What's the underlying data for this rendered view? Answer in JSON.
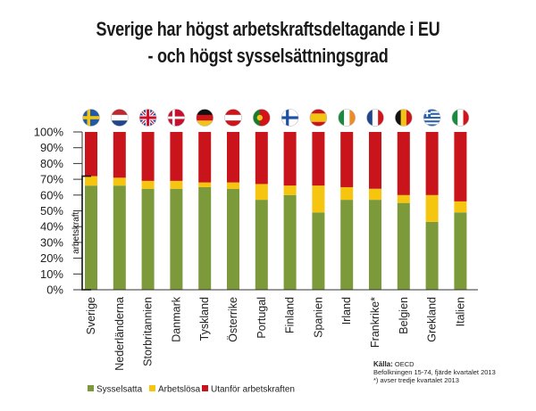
{
  "title": {
    "line1": "Sverige har högst arbetskraftsdeltagande i EU",
    "line2": "- och högst sysselsättningsgrad"
  },
  "colors": {
    "employed": "#7d9a3a",
    "unemployed": "#f5c50f",
    "outside": "#c8141a"
  },
  "chart_data": {
    "type": "bar",
    "stacked": true,
    "categories": [
      "Sverige",
      "Nederländerna",
      "Storbritannien",
      "Danmark",
      "Tyskland",
      "Österrike",
      "Portugal",
      "Finland",
      "Spanien",
      "Irland",
      "Frankrike*",
      "Belgien",
      "Grekland",
      "Italien"
    ],
    "flags": [
      "se-flag",
      "nl-flag",
      "gb-flag",
      "dk-flag",
      "de-flag",
      "at-flag",
      "pt-flag",
      "fi-flag",
      "es-flag",
      "ie-flag",
      "fr-flag",
      "be-flag",
      "gr-flag",
      "it-flag"
    ],
    "series": [
      {
        "name": "Sysselsatta",
        "values": [
          66,
          66,
          64,
          64,
          65,
          64,
          57,
          60,
          49,
          57,
          57,
          55,
          43,
          49
        ]
      },
      {
        "name": "Arbetslösa",
        "values": [
          6,
          5,
          5,
          5,
          3,
          4,
          10,
          6,
          17,
          8,
          7,
          5,
          17,
          7
        ]
      },
      {
        "name": "Utanför arbetskraften",
        "values": [
          28,
          29,
          31,
          31,
          32,
          32,
          33,
          34,
          34,
          35,
          36,
          40,
          40,
          44
        ]
      }
    ],
    "ylim": [
      0,
      100
    ],
    "yticks": [
      "0%",
      "10%",
      "20%",
      "30%",
      "40%",
      "50%",
      "60%",
      "70%",
      "80%",
      "90%",
      "100%"
    ],
    "bracket_label": "arbetskraft",
    "legend": [
      "Sysselsatta",
      "Arbetslösa",
      "Utanför arbetskraften"
    ],
    "legend_position": "bottom-left"
  },
  "source": {
    "label": "Källa:",
    "name": "OECD",
    "note1": "Befolkningen 15-74, fjärde kvartalet 2013",
    "note2": "*) avser tredje kvartalet 2013"
  }
}
